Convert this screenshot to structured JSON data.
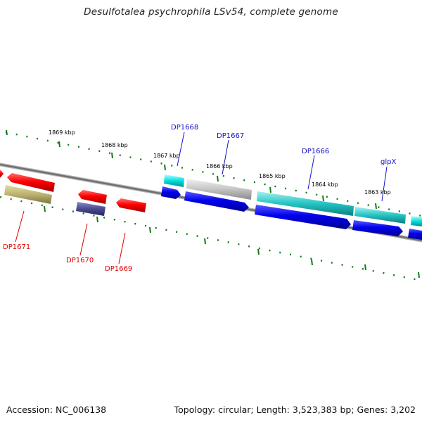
{
  "title": "Desulfotalea psychrophila LSv54, complete genome",
  "footer": {
    "accession": "Accession: NC_006138",
    "stats": "Topology: circular; Length: 3,523,383 bp; Genes: 3,202"
  },
  "colors": {
    "backbone": "#808080",
    "ticks": "#157a15",
    "forward_label": "#1010cc",
    "reverse_label": "#dd0000"
  },
  "kbp_labels": [
    "1869 kbp",
    "1868 kbp",
    "1867 kbp",
    "1866 kbp",
    "1865 kbp",
    "1864 kbp",
    "1863 kbp"
  ],
  "gene_labels": {
    "forward": [
      "DP1668",
      "DP1667",
      "DP1666",
      "glpX"
    ],
    "reverse": [
      "DP1671",
      "DP1670",
      "DP1669"
    ]
  }
}
